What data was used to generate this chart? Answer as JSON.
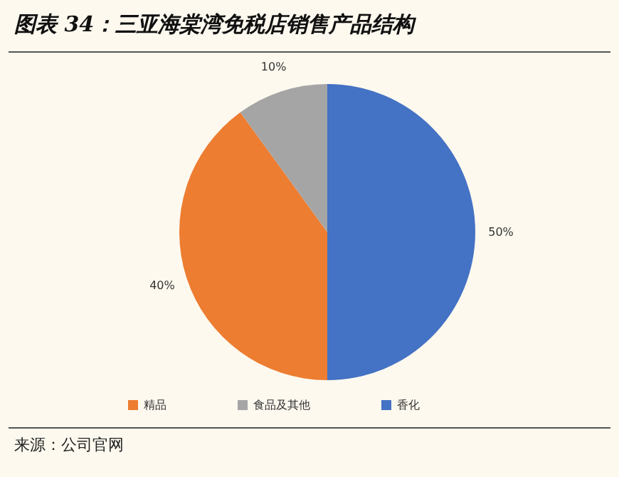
{
  "chart_data": {
    "type": "pie",
    "title": "图表 34：三亚海棠湾免税店销售产品结构",
    "categories": [
      "香化",
      "精品",
      "食品及其他"
    ],
    "values": [
      50,
      40,
      10
    ],
    "value_labels": [
      "50%",
      "40%",
      "10%"
    ],
    "colors": [
      "#4472c4",
      "#ed7d31",
      "#a5a5a5"
    ],
    "legend": "bottom",
    "annotations": [
      "来源：公司官网"
    ]
  }
}
